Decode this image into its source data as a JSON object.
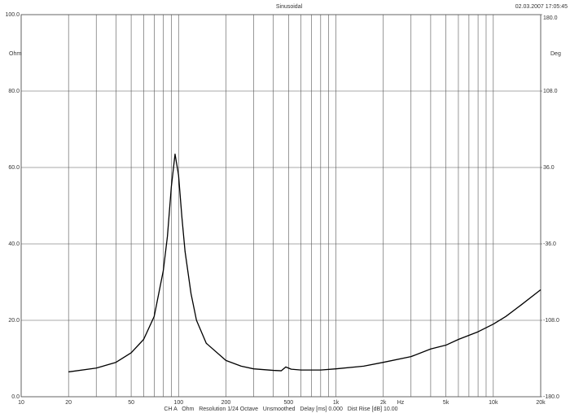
{
  "chart_data": {
    "type": "line",
    "title": "Sinusoidal",
    "timestamp": "02.03.2007 17:05:45",
    "ylabel": "Ohm",
    "y2label": "Deg",
    "xlabel": "Hz",
    "caption": "CH A   Ohm   Resolution 1/24 Octave   Unsmoothed   Delay [ms] 0.000   Dist Rise [dB] 10.00",
    "color": "#000000",
    "xscale": "log",
    "grid": true,
    "x": [
      20,
      30,
      40,
      50,
      60,
      70,
      80,
      85,
      90,
      95,
      100,
      105,
      110,
      120,
      130,
      150,
      200,
      250,
      300,
      400,
      450,
      480,
      520,
      600,
      800,
      1000,
      1500,
      2000,
      3000,
      4000,
      5000,
      6000,
      8000,
      10000,
      12000,
      15000,
      20000
    ],
    "values": [
      6.5,
      7.5,
      9,
      11.5,
      15,
      21,
      33,
      42,
      55,
      63.5,
      58,
      47,
      38,
      27,
      20,
      14,
      9.5,
      8,
      7.3,
      6.9,
      6.8,
      7.8,
      7.2,
      7,
      7,
      7.3,
      8,
      9,
      10.5,
      12.5,
      13.5,
      15,
      17,
      19,
      21,
      24,
      28
    ],
    "xlim": [
      10,
      20000
    ],
    "xticks": [
      10,
      20,
      50,
      100,
      200,
      500,
      {
        "value": 1000,
        "label": "1k"
      },
      {
        "value": 2000,
        "label": "2k"
      },
      {
        "value": 5000,
        "label": "5k"
      },
      {
        "value": 10000,
        "label": "10k"
      },
      {
        "value": 20000,
        "label": "20k"
      }
    ],
    "xminor": [
      30,
      40,
      60,
      70,
      80,
      90,
      300,
      400,
      600,
      700,
      800,
      900,
      3000,
      4000,
      6000,
      7000,
      8000,
      9000
    ],
    "ylim": [
      0,
      100
    ],
    "yticks": [
      {
        "value": 0,
        "label": "0.0"
      },
      {
        "value": 20,
        "label": "20.0"
      },
      {
        "value": 40,
        "label": "40.0"
      },
      {
        "value": 60,
        "label": "60.0"
      },
      {
        "value": 80,
        "label": "80.0"
      },
      {
        "value": 100,
        "label": "100.0"
      }
    ],
    "y2lim": [
      -180,
      180
    ],
    "y2ticks": [
      {
        "value": -180,
        "label": "-180.0"
      },
      {
        "value": -108,
        "label": "-108.0"
      },
      {
        "value": -36,
        "label": "-36.0"
      },
      {
        "value": 36,
        "label": "36.0"
      },
      {
        "value": 108,
        "label": "108.0"
      },
      {
        "value": 180,
        "label": "180.0"
      }
    ]
  }
}
